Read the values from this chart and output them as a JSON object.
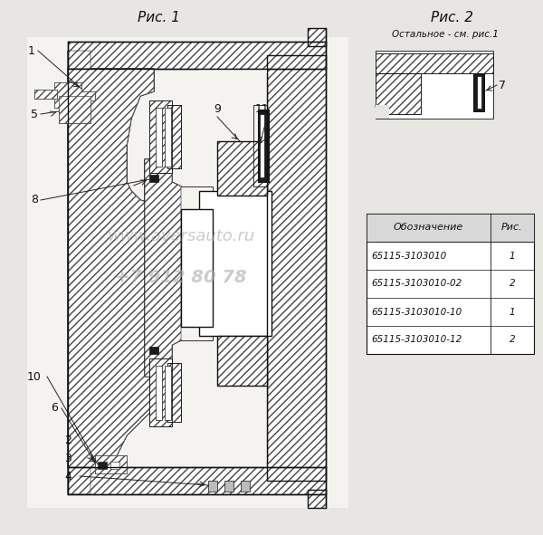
{
  "title1": "Рис. 1",
  "title2": "Рис. 2",
  "subtitle2": "Остальное - см. рис.1",
  "watermark_line1": "www.aversauto.ru",
  "watermark_line2": "+7 912 80 78",
  "bg_color": "#e8e6e2",
  "table_header": [
    "Обозначение",
    "Рис."
  ],
  "table_rows": [
    [
      "65115-3103010",
      "1"
    ],
    [
      "65115-3103010-02",
      "2"
    ],
    [
      "65115-3103010-10",
      "1"
    ],
    [
      "65115-3103010-12",
      "2"
    ]
  ],
  "hatch_color": "#444444",
  "line_color": "#111111",
  "drawing_bg": "#f5f3ef"
}
